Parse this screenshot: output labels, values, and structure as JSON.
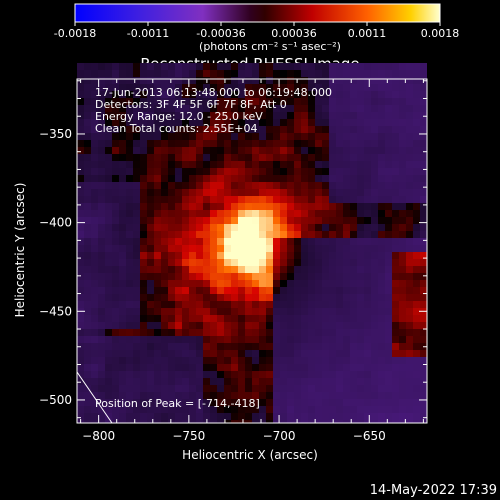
{
  "colorbar": {
    "tick_labels": [
      "-0.0018",
      "-0.0011",
      "-0.00036",
      "0.00036",
      "0.0011",
      "0.0018"
    ],
    "unit_label": "(photons cm⁻² s⁻¹ asec⁻²)",
    "range": [
      -0.0018,
      0.0018
    ]
  },
  "title": "Reconstructed RHESSI Image",
  "info_lines": [
    "17-Jun-2013 06:13:48.000 to 06:19:48.000",
    "Detectors: 3F 4F 5F 6F 7F 8F, Att 0",
    "Energy Range: 12.0 - 25.0 keV",
    "Clean    Total counts: 2.55E+04"
  ],
  "peak_text": "Position of Peak = [-714,-418]",
  "peak": {
    "x": -714,
    "y": -418
  },
  "axes": {
    "xlabel": "Heliocentric X (arcsec)",
    "ylabel": "Heliocentric Y (arcsec)",
    "xlim": [
      -812,
      -618
    ],
    "ylim": [
      -513,
      -319
    ],
    "x_ticks": [
      -800,
      -750,
      -700,
      -650
    ],
    "y_ticks": [
      -500,
      -450,
      -400,
      -350
    ],
    "x_tick_labels": [
      "−800",
      "−750",
      "−700",
      "−650"
    ],
    "y_tick_labels": [
      "−500",
      "−450",
      "−400",
      "−350"
    ]
  },
  "timestamp": "14-May-2022 17:39",
  "colors": {
    "background": "#000000",
    "text": "#ffffff",
    "limb": "#ffffff"
  }
}
